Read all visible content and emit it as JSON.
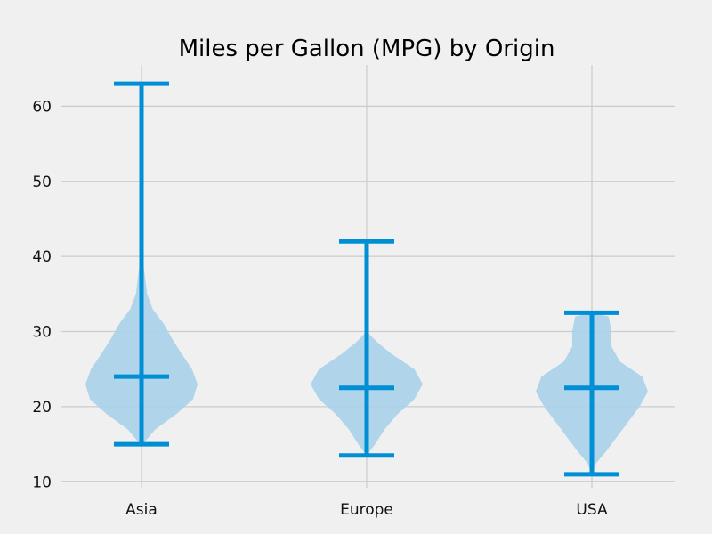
{
  "chart_data": {
    "type": "violin",
    "title": "Miles per Gallon (MPG) by Origin",
    "xlabel": "",
    "ylabel": "",
    "categories": [
      "Asia",
      "Europe",
      "USA"
    ],
    "ylim": [
      9.2,
      65.5
    ],
    "yticks": [
      10,
      20,
      30,
      40,
      50,
      60
    ],
    "grid": true,
    "series": [
      {
        "category": "Asia",
        "min": 15.0,
        "median": 24.0,
        "max": 63.0,
        "density_profile": [
          {
            "y": 15.0,
            "w": 0.02
          },
          {
            "y": 17.0,
            "w": 0.25
          },
          {
            "y": 19.0,
            "w": 0.62
          },
          {
            "y": 21.0,
            "w": 0.92
          },
          {
            "y": 23.0,
            "w": 1.0
          },
          {
            "y": 25.0,
            "w": 0.9
          },
          {
            "y": 27.0,
            "w": 0.72
          },
          {
            "y": 29.0,
            "w": 0.55
          },
          {
            "y": 31.0,
            "w": 0.4
          },
          {
            "y": 33.0,
            "w": 0.2
          },
          {
            "y": 35.0,
            "w": 0.1
          },
          {
            "y": 38.0,
            "w": 0.05
          },
          {
            "y": 41.0,
            "w": 0.0
          }
        ]
      },
      {
        "category": "Europe",
        "min": 13.5,
        "median": 22.5,
        "max": 42.0,
        "density_profile": [
          {
            "y": 13.5,
            "w": 0.0
          },
          {
            "y": 15.0,
            "w": 0.15
          },
          {
            "y": 17.0,
            "w": 0.32
          },
          {
            "y": 19.0,
            "w": 0.55
          },
          {
            "y": 21.0,
            "w": 0.85
          },
          {
            "y": 23.0,
            "w": 1.0
          },
          {
            "y": 25.0,
            "w": 0.85
          },
          {
            "y": 27.0,
            "w": 0.45
          },
          {
            "y": 28.5,
            "w": 0.2
          },
          {
            "y": 30.0,
            "w": 0.0
          }
        ]
      },
      {
        "category": "USA",
        "min": 11.0,
        "median": 22.5,
        "max": 32.5,
        "density_profile": [
          {
            "y": 11.0,
            "w": 0.0
          },
          {
            "y": 12.5,
            "w": 0.08
          },
          {
            "y": 14.0,
            "w": 0.25
          },
          {
            "y": 16.0,
            "w": 0.45
          },
          {
            "y": 18.0,
            "w": 0.65
          },
          {
            "y": 20.0,
            "w": 0.85
          },
          {
            "y": 22.0,
            "w": 1.0
          },
          {
            "y": 24.0,
            "w": 0.9
          },
          {
            "y": 26.0,
            "w": 0.5
          },
          {
            "y": 28.0,
            "w": 0.35
          },
          {
            "y": 30.0,
            "w": 0.35
          },
          {
            "y": 32.0,
            "w": 0.3
          },
          {
            "y": 32.5,
            "w": 0.0
          }
        ]
      }
    ],
    "colors": {
      "stat_line": "#008fd5",
      "violin_fill": "#a9d1ea",
      "grid": "#cbcbcb",
      "background": "#f0f0f0"
    }
  }
}
